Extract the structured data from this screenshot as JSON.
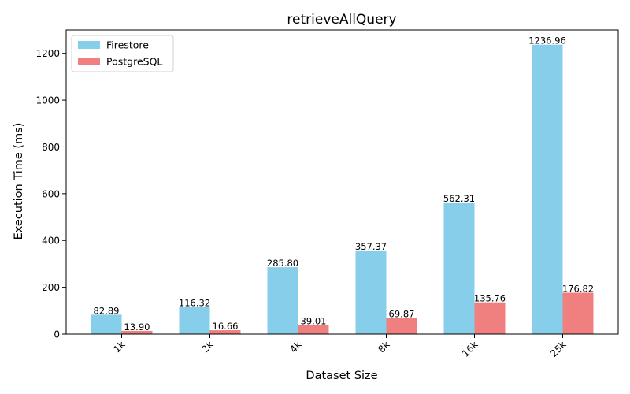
{
  "chart_data": {
    "type": "bar",
    "title": "retrieveAllQuery",
    "xlabel": "Dataset Size",
    "ylabel": "Execution Time (ms)",
    "categories": [
      "1k",
      "2k",
      "4k",
      "8k",
      "16k",
      "25k"
    ],
    "ylim": [
      0,
      1300
    ],
    "yticks": [
      0,
      200,
      400,
      600,
      800,
      1000,
      1200
    ],
    "grid": false,
    "legend_position": "top-left",
    "series": [
      {
        "name": "Firestore",
        "color": "#87ceeb",
        "values": [
          82.89,
          116.32,
          285.8,
          357.37,
          562.31,
          1236.96
        ],
        "labels": [
          "82.89",
          "116.32",
          "285.80",
          "357.37",
          "562.31",
          "1236.96"
        ]
      },
      {
        "name": "PostgreSQL",
        "color": "#f08080",
        "values": [
          13.9,
          16.66,
          39.01,
          69.87,
          135.76,
          176.82
        ],
        "labels": [
          "13.90",
          "16.66",
          "39.01",
          "69.87",
          "135.76",
          "176.82"
        ]
      }
    ]
  }
}
